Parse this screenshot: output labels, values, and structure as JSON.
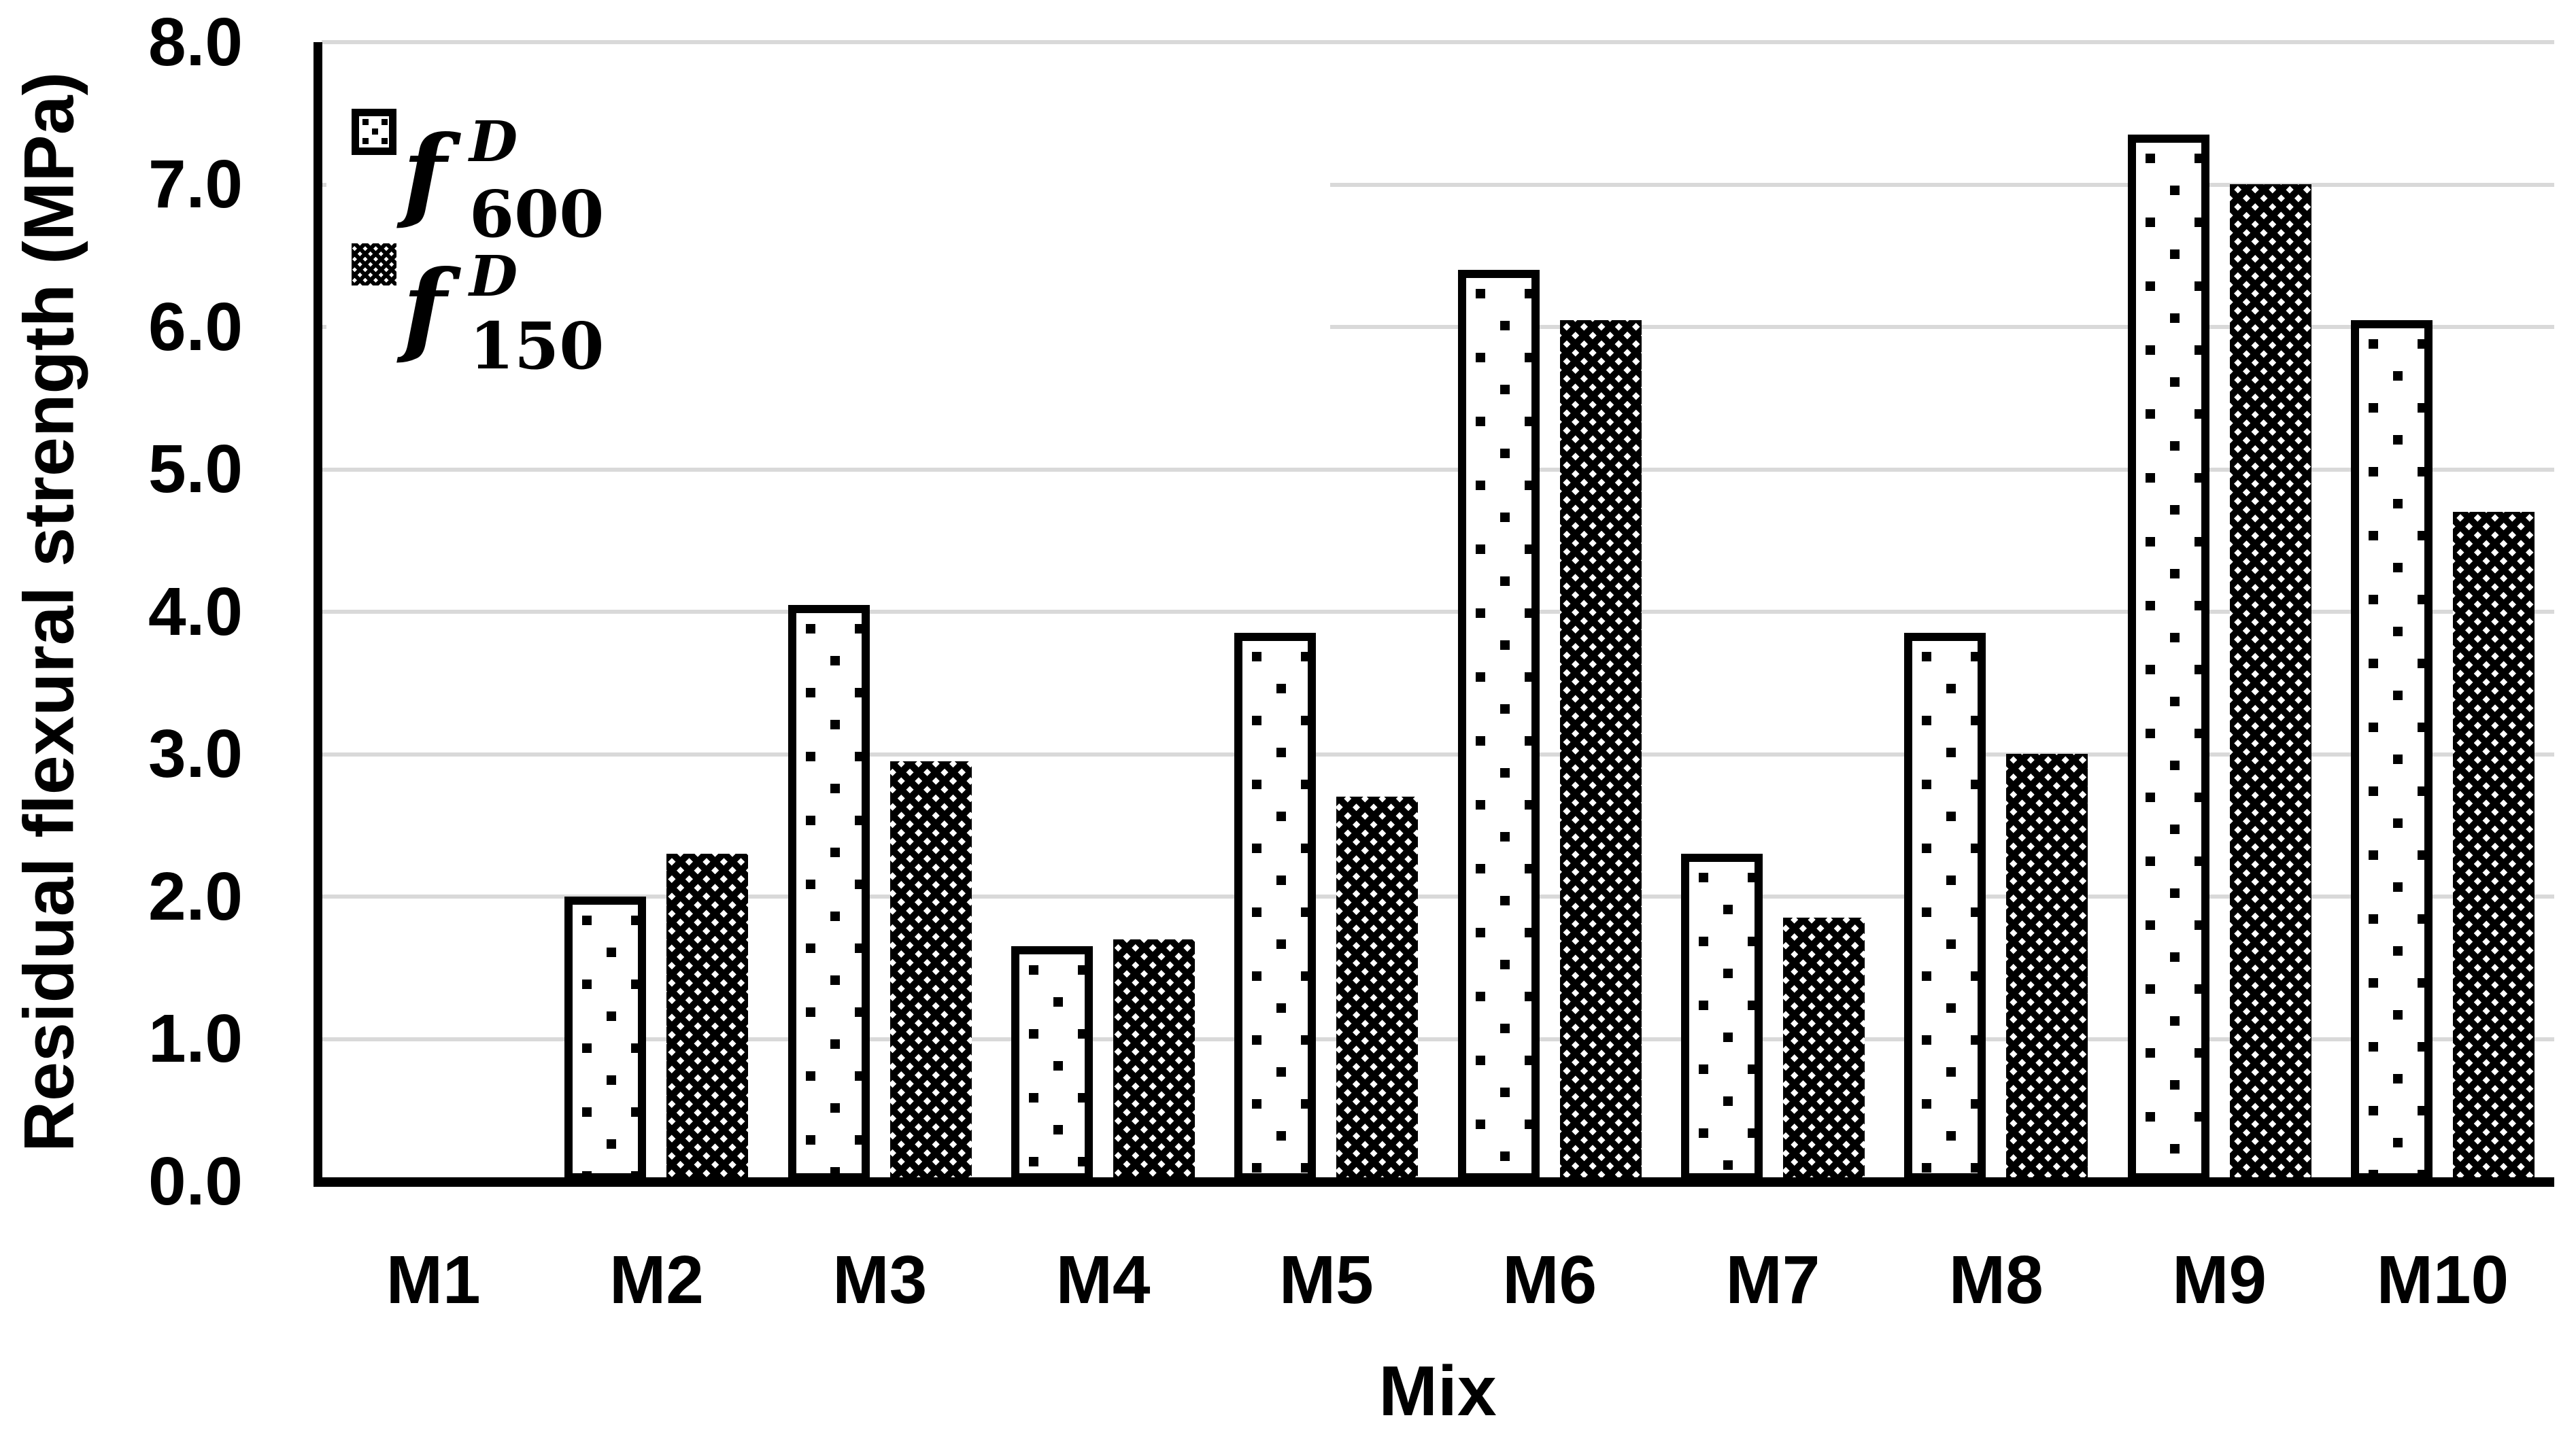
{
  "colors": {
    "bar_stroke": "#000000",
    "gridline": "#d9d9d9",
    "background": "#ffffff",
    "text": "#000000"
  },
  "legend": {
    "items": [
      {
        "f": "f",
        "sup": "D",
        "sub": "600",
        "pattern": "dots-icon"
      },
      {
        "f": "f",
        "sup": "D",
        "sub": "150",
        "pattern": "trellis-icon"
      }
    ]
  },
  "chart_data": {
    "type": "bar",
    "title": "",
    "xlabel": "Mix",
    "ylabel": "Residual flexural strength (MPa)",
    "categories": [
      "M1",
      "M2",
      "M3",
      "M4",
      "M5",
      "M6",
      "M7",
      "M8",
      "M9",
      "M10"
    ],
    "series": [
      {
        "name": "f600",
        "legend": "f D 600",
        "pattern": "dots",
        "values": [
          0,
          2.0,
          4.05,
          1.65,
          3.85,
          6.4,
          2.3,
          3.85,
          7.35,
          6.05
        ]
      },
      {
        "name": "f150",
        "legend": "f D 150",
        "pattern": "trellis",
        "values": [
          0,
          2.3,
          2.95,
          1.7,
          2.7,
          6.05,
          1.85,
          3.0,
          7.0,
          4.7
        ]
      }
    ],
    "ylim": [
      0,
      8
    ],
    "ytick_step": 1.0,
    "yticks": [
      "8.0",
      "7.0",
      "6.0",
      "5.0",
      "4.0",
      "3.0",
      "2.0",
      "1.0",
      "0.0"
    ],
    "grid": "horizontal-major",
    "legend_position": "inside-top-left"
  }
}
